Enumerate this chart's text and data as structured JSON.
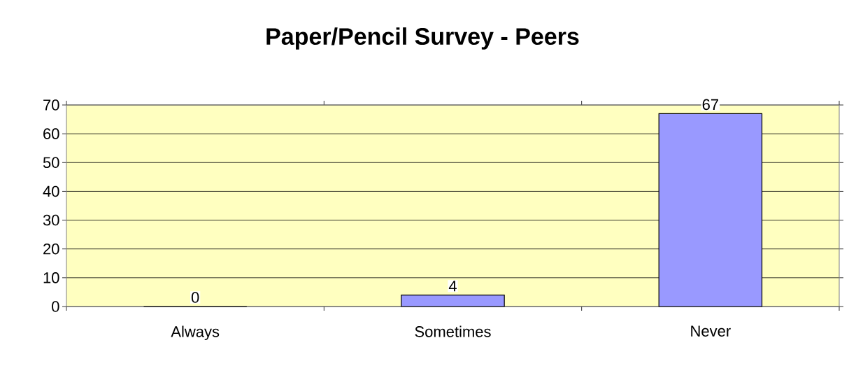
{
  "chart_data": {
    "type": "bar",
    "title": "Paper/Pencil Survey - Peers",
    "categories": [
      "Always",
      "Sometimes",
      "Never"
    ],
    "values": [
      0,
      4,
      67
    ],
    "color": "#9999ff",
    "ylim": [
      0,
      70
    ],
    "yticks": [
      0,
      10,
      20,
      30,
      40,
      50,
      60,
      70
    ],
    "grid": "y",
    "data_labels": true
  }
}
